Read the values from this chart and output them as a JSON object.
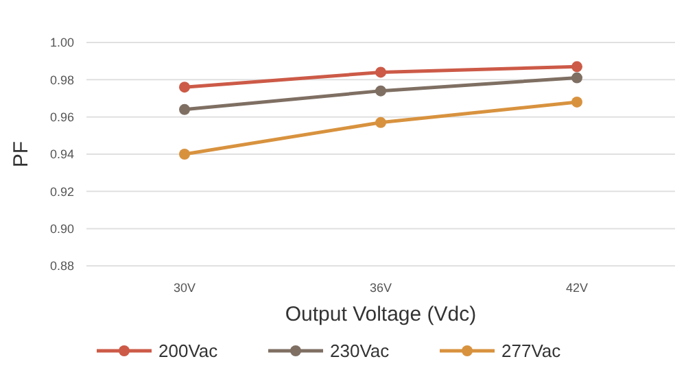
{
  "chart_data": {
    "type": "line",
    "xlabel": "Output Voltage (Vdc)",
    "ylabel": "PF",
    "categories": [
      "30V",
      "36V",
      "42V"
    ],
    "series": [
      {
        "name": "200Vac",
        "color": "#cc5a47",
        "values": [
          0.976,
          0.984,
          0.987
        ]
      },
      {
        "name": "230Vac",
        "color": "#7f6f63",
        "values": [
          0.964,
          0.974,
          0.981
        ]
      },
      {
        "name": "277Vac",
        "color": "#d8923e",
        "values": [
          0.94,
          0.957,
          0.968
        ]
      }
    ],
    "ylim": [
      0.88,
      1.0
    ],
    "yticks": [
      {
        "value": 0.88,
        "label": "0.88"
      },
      {
        "value": 0.9,
        "label": "0.90"
      },
      {
        "value": 0.92,
        "label": "0.92"
      },
      {
        "value": 0.94,
        "label": "0.94"
      },
      {
        "value": 0.96,
        "label": "0.96"
      },
      {
        "value": 0.98,
        "label": "0.98"
      },
      {
        "value": 1.0,
        "label": "1.00"
      }
    ],
    "grid": "y",
    "legend": "bottom",
    "marker": "circle",
    "line_style": "solid"
  }
}
